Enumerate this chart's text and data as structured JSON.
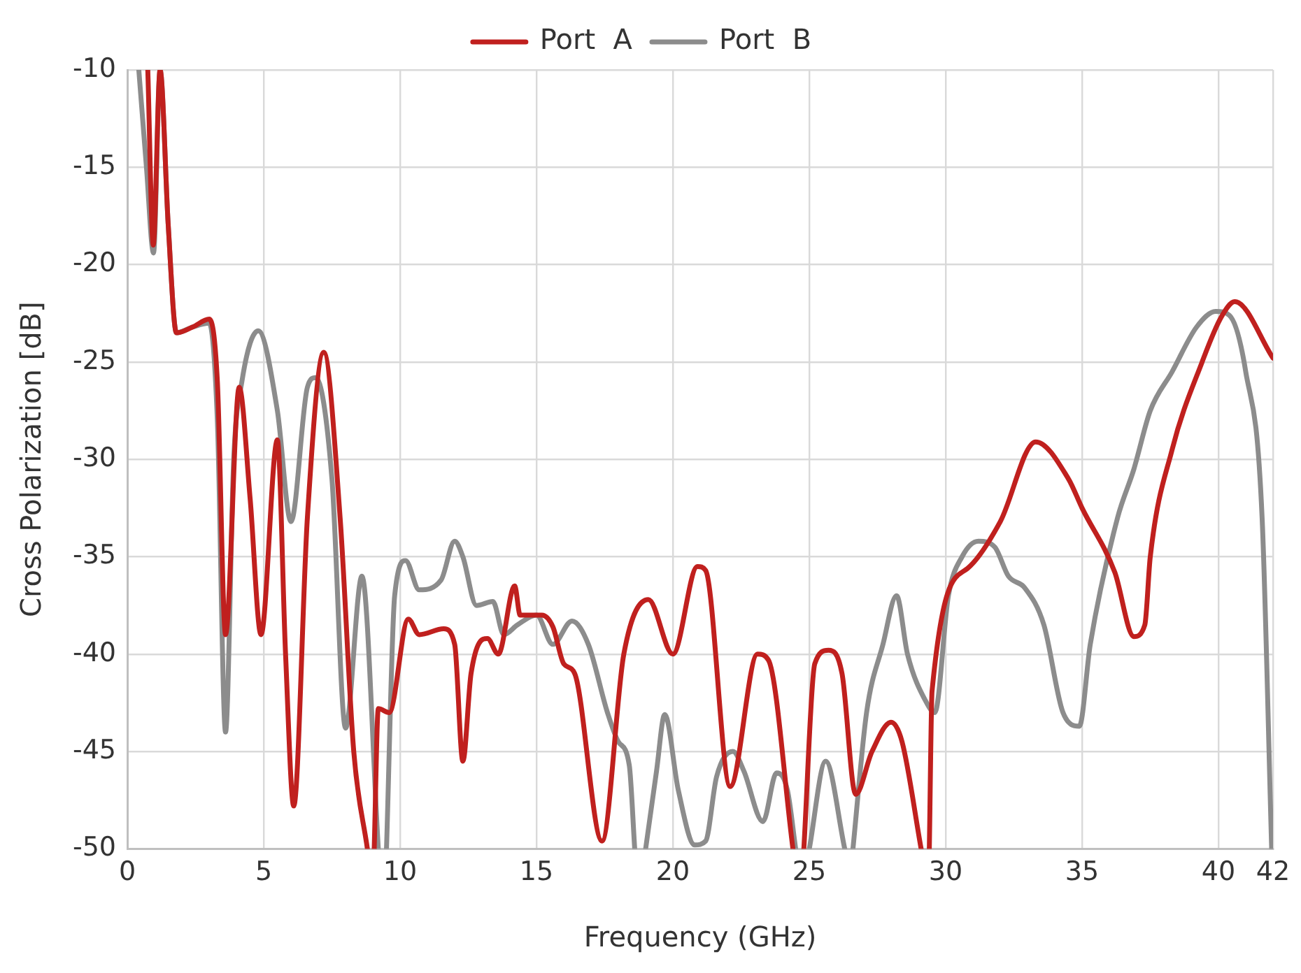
{
  "chart_data": {
    "type": "line",
    "xlabel": "Frequency (GHz)",
    "ylabel": "Cross Polarization [dB]",
    "xlim": [
      0,
      42
    ],
    "xticks": [
      0,
      5,
      10,
      15,
      20,
      25,
      30,
      35,
      40,
      42
    ],
    "ylim": [
      -50,
      -10
    ],
    "yticks": [
      -50,
      -45,
      -40,
      -35,
      -30,
      -25,
      -20,
      -15,
      -10
    ],
    "grid": true,
    "legend": "top",
    "marker": "none",
    "line_style": "solid",
    "series": [
      {
        "name": "Port  A",
        "color": "#c0201e",
        "x": [
          0.75,
          0.95,
          1.2,
          1.5,
          1.8,
          2.4,
          3.0,
          3.3,
          3.6,
          4.1,
          4.5,
          4.9,
          5.5,
          5.8,
          6.1,
          6.6,
          7.2,
          7.8,
          8.3,
          8.8,
          8.95,
          9.05,
          9.2,
          9.6,
          10.3,
          10.7,
          11.6,
          12.0,
          12.3,
          12.6,
          13.2,
          13.6,
          14.2,
          14.4,
          15.2,
          15.6,
          16.0,
          16.4,
          17.4,
          18.2,
          19.1,
          20.0,
          20.9,
          21.2,
          22.1,
          23.1,
          23.5,
          24.4,
          24.6,
          24.8,
          25.2,
          25.7,
          26.2,
          26.7,
          27.3,
          28.0,
          28.4,
          29.1,
          29.25,
          29.4,
          29.5,
          30.8,
          32.0,
          33.3,
          34.5,
          35.0,
          36.2,
          36.9,
          37.3,
          37.5,
          38.3,
          39.4,
          40.1,
          40.6,
          42
        ],
        "values": [
          -10,
          -19,
          -10,
          -18,
          -23.5,
          -23.2,
          -22.8,
          -26,
          -39,
          -26.3,
          -32,
          -39,
          -29,
          -40,
          -47.8,
          -33,
          -24.5,
          -33,
          -45,
          -50,
          null,
          -50,
          -42.8,
          -43,
          -38.2,
          -39,
          -38.7,
          -39.5,
          -45.5,
          -41,
          -39.2,
          -40,
          -36.5,
          -38,
          -38,
          -38.6,
          -40.5,
          -41,
          -49.6,
          -40,
          -37.2,
          -40,
          -35.5,
          -35.7,
          -46.8,
          -40,
          -40.3,
          -50,
          null,
          -50,
          -40.5,
          -39.8,
          -41,
          -47.2,
          -45,
          -43.5,
          -44.5,
          -50,
          null,
          -50,
          -41.9,
          -35.6,
          -33.2,
          -29.1,
          -31,
          -32.5,
          -35.8,
          -39.1,
          -38.5,
          -35,
          -29.5,
          -25,
          -22.7,
          -21.9,
          -24.8
        ]
      },
      {
        "name": "Port  B",
        "color": "#8c8c8c",
        "x": [
          0.42,
          0.7,
          0.96,
          1.2,
          1.5,
          1.8,
          2.4,
          3.0,
          3.3,
          3.6,
          3.9,
          4.2,
          4.8,
          5.5,
          6.0,
          6.6,
          6.9,
          7.5,
          8.0,
          8.6,
          9.2,
          9.35,
          9.5,
          9.8,
          10.2,
          10.7,
          11.5,
          12.0,
          12.3,
          12.8,
          13.4,
          13.8,
          14.3,
          15.0,
          15.6,
          16.3,
          16.9,
          17.6,
          18.0,
          18.4,
          18.6,
          18.8,
          19.0,
          19.4,
          19.7,
          20.2,
          20.8,
          21.2,
          21.6,
          22.2,
          22.6,
          23.3,
          23.8,
          24.2,
          24.5,
          24.75,
          25.0,
          25.6,
          26.3,
          26.45,
          26.6,
          27.1,
          27.7,
          28.2,
          28.6,
          29.3,
          29.6,
          30.1,
          30.6,
          31.2,
          31.8,
          32.3,
          32.9,
          33.6,
          34.3,
          34.9,
          35.3,
          36.3,
          36.9,
          37.0,
          37.5,
          38.3,
          39.2,
          39.9,
          40.4,
          41.0,
          41.6,
          41.95
        ],
        "values": [
          -10,
          -15,
          -19.4,
          -10,
          -18,
          -23.5,
          -23.2,
          -23,
          -28,
          -44,
          -30,
          -26,
          -23.4,
          -27.5,
          -33.2,
          -26.3,
          -25.8,
          -31,
          -43.8,
          -36,
          -50,
          null,
          -50,
          -37,
          -35.2,
          -36.7,
          -36.2,
          -34.2,
          -35,
          -37.5,
          -37.3,
          -39,
          -38.5,
          -38,
          -39.5,
          -38.3,
          -39.5,
          -43,
          -44.5,
          -45.7,
          -50,
          null,
          -50,
          -46,
          -43.1,
          -47,
          -49.8,
          -49.6,
          -46.3,
          -45,
          -46,
          -48.6,
          -46.1,
          -47,
          -50,
          null,
          -50,
          -45.5,
          -50,
          null,
          -50,
          -43,
          -39.5,
          -37,
          -40,
          -42.5,
          -43,
          -37,
          -35,
          -34.2,
          -34.5,
          -36,
          -36.6,
          -38.5,
          -43,
          -43.7,
          -39.5,
          -33,
          -30.5,
          -30,
          -27.5,
          -25.5,
          -23.2,
          -22.4,
          -22.6,
          -25.5,
          -33,
          -50
        ]
      }
    ]
  }
}
